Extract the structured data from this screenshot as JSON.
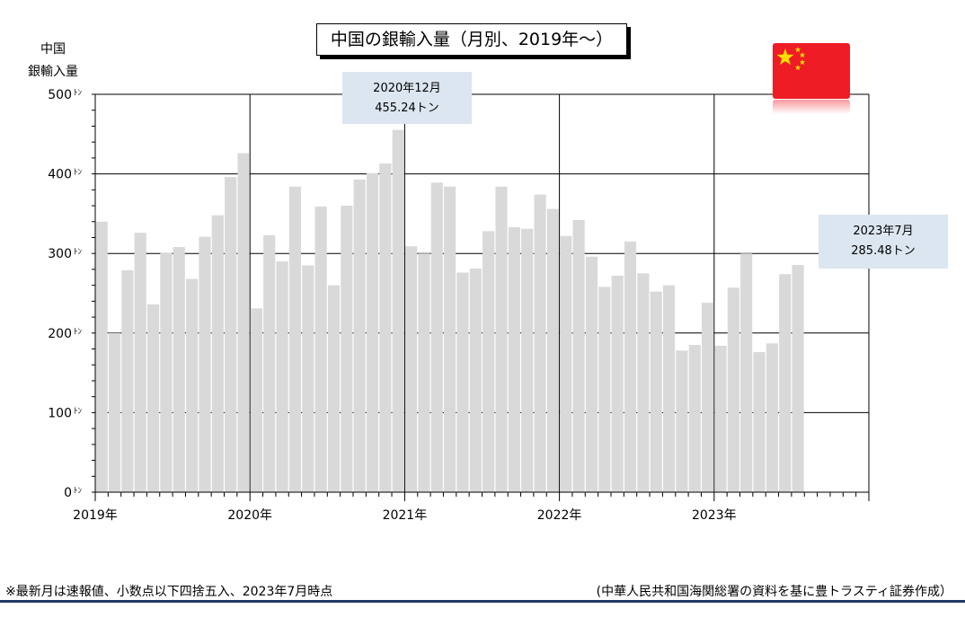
{
  "header": {
    "title": "中国の銀輸入量（月別、2019年～）",
    "ylabel_line1": "中国",
    "ylabel_line2": "銀輸入量"
  },
  "callouts": [
    {
      "month": "2020年12月",
      "value": "455.24トン"
    },
    {
      "month": "2023年7月",
      "value": "285.48トン"
    }
  ],
  "footer": {
    "note": "※最新月は速報値、小数点以下四捨五入、2023年7月時点",
    "source": "(中華人民共和国海関総署の資料を基に豊トラスティ証券作成）"
  },
  "icons": {
    "flag": "china-flag-icon"
  },
  "colors": {
    "bar": "#d9d9d9",
    "flag_red": "#ee1c25",
    "flag_star": "#ffde00",
    "rule": "#1f3864",
    "callout": "#dce6f1"
  },
  "chart_data": {
    "type": "bar",
    "y_unit": "ﾄﾝ",
    "ylim": [
      0,
      500
    ],
    "y_ticks": [
      0,
      100,
      200,
      300,
      400,
      500
    ],
    "y_tick_labels": [
      "0",
      "100",
      "200",
      "300",
      "400",
      "500"
    ],
    "x_year_labels": [
      "2019年",
      "2020年",
      "2021年",
      "2022年",
      "2023年"
    ],
    "total_slots": 60,
    "grid": true,
    "values": [
      340,
      200,
      279,
      326,
      236,
      301,
      308,
      268,
      321,
      348,
      396,
      426,
      231,
      323,
      290,
      384,
      285,
      359,
      260,
      360,
      393,
      401,
      413,
      455.24,
      309,
      300,
      389,
      384,
      276,
      281,
      328,
      384,
      333,
      331,
      374,
      356,
      322,
      342,
      296,
      258,
      272,
      315,
      275,
      252,
      260,
      178,
      185,
      238,
      184,
      257,
      300,
      176,
      187,
      274,
      285.48
    ]
  }
}
